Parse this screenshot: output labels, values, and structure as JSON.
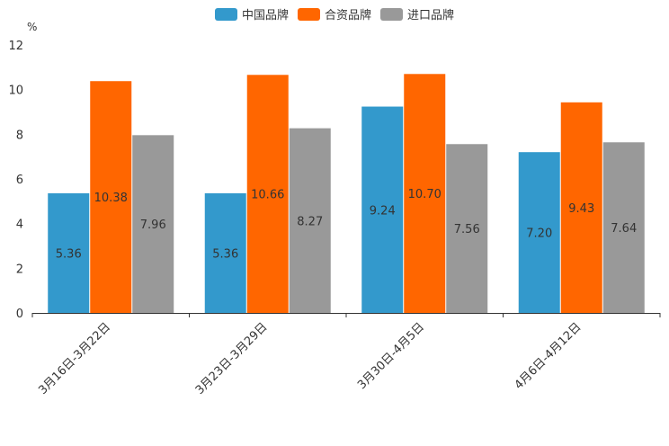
{
  "chart_data": {
    "type": "bar",
    "title": "",
    "unit": "%",
    "xlabel": "",
    "ylabel": "%",
    "ylim": [
      0,
      12
    ],
    "yticks": [
      0,
      2,
      4,
      6,
      8,
      10,
      12
    ],
    "grid": false,
    "legend_position": "top-center",
    "categories": [
      "3月16日-3月22日",
      "3月23日-3月29日",
      "3月30日-4月5日",
      "4月6日-4月12日"
    ],
    "series": [
      {
        "name": "中国品牌",
        "color": "#3399cc",
        "values": [
          5.36,
          5.36,
          9.24,
          7.2
        ],
        "labels": [
          "5.36",
          "5.36",
          "9.24",
          "7.20"
        ]
      },
      {
        "name": "合资品牌",
        "color": "#ff6600",
        "values": [
          10.38,
          10.66,
          10.7,
          9.43
        ],
        "labels": [
          "10.38",
          "10.66",
          "10.70",
          "9.43"
        ]
      },
      {
        "name": "进口品牌",
        "color": "#999999",
        "values": [
          7.96,
          8.27,
          7.56,
          7.64
        ],
        "labels": [
          "7.96",
          "8.27",
          "7.56",
          "7.64"
        ]
      }
    ]
  }
}
